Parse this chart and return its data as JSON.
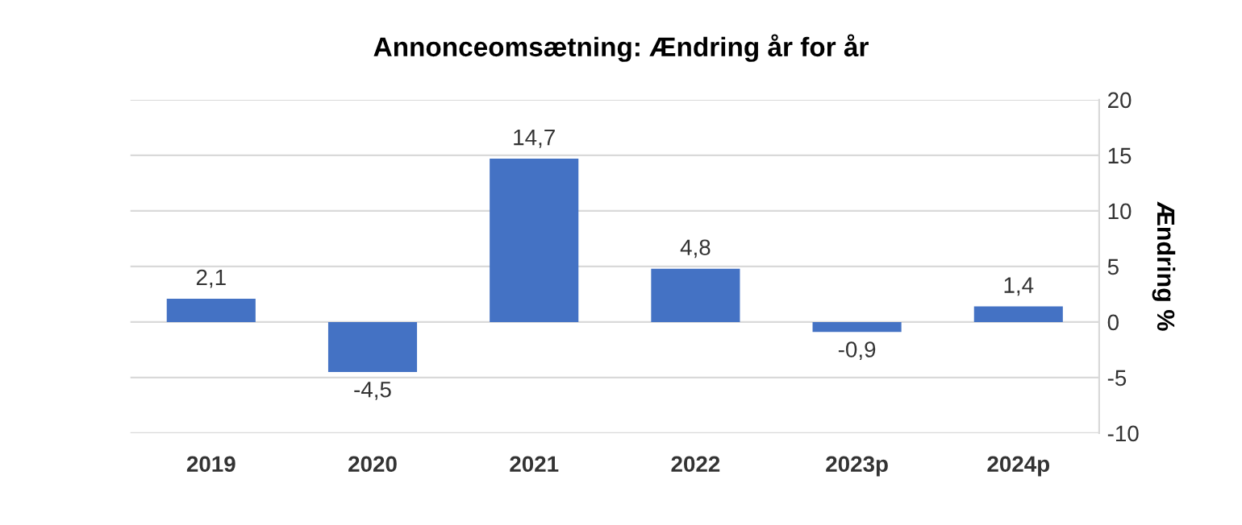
{
  "chart_data": {
    "type": "bar",
    "title": "Annonceomsætning: Ændring år for år",
    "ylabel": "Ændring %",
    "categories": [
      "2019",
      "2020",
      "2021",
      "2022",
      "2023p",
      "2024p"
    ],
    "values": [
      2.1,
      -4.5,
      14.7,
      4.8,
      -0.9,
      1.4
    ],
    "value_labels": [
      "2,1",
      "-4,5",
      "14,7",
      "4,8",
      "-0,9",
      "1,4"
    ],
    "color": "#4472c4",
    "ylim": [
      -10,
      20
    ],
    "yticks": [
      -10,
      -5,
      0,
      5,
      10,
      15,
      20
    ],
    "grid": "y"
  }
}
